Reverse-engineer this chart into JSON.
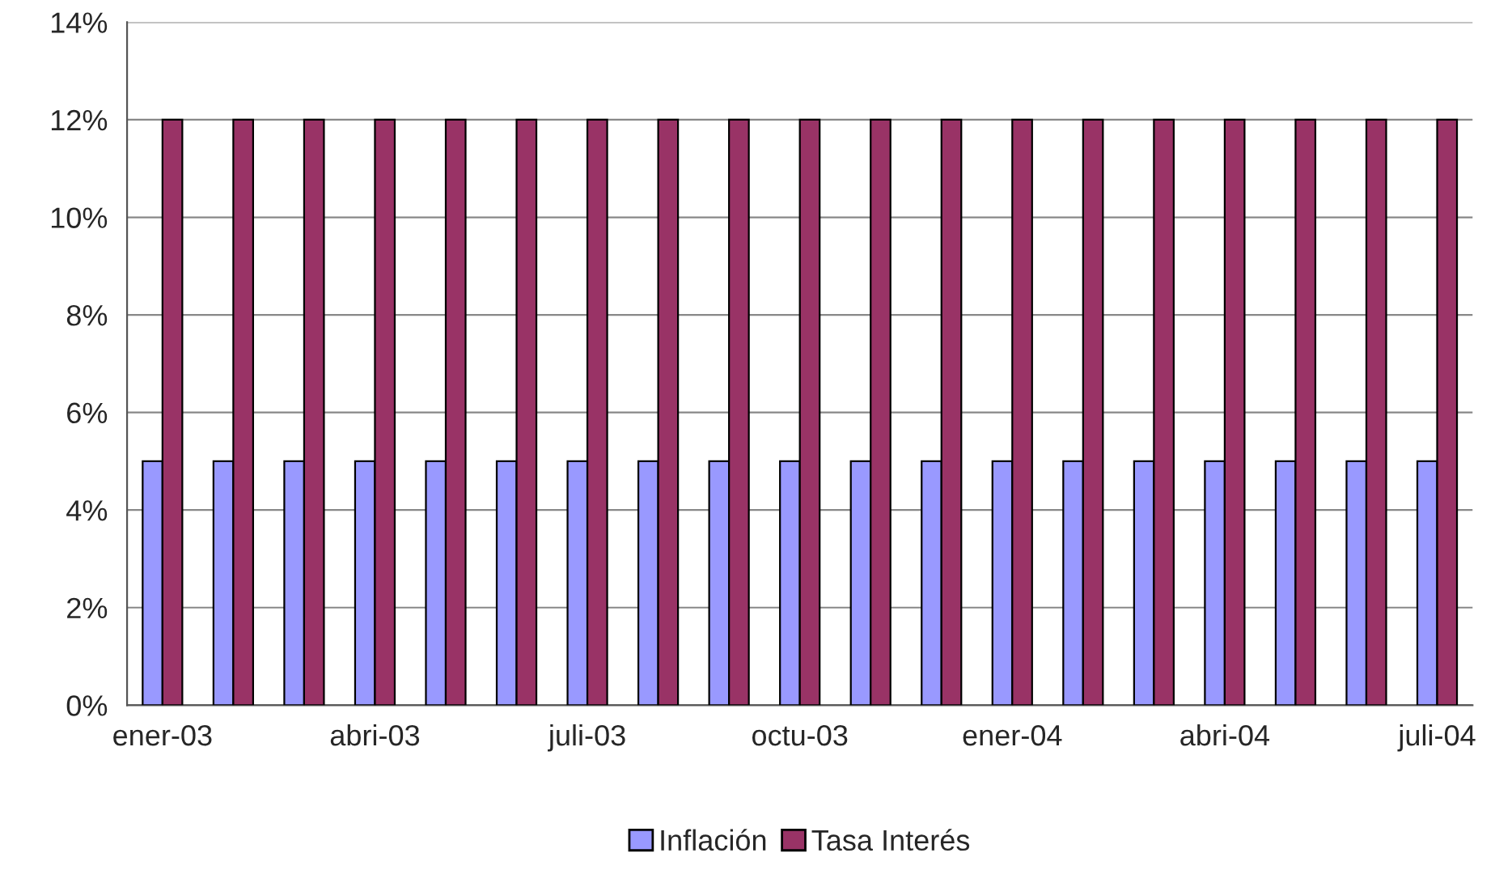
{
  "chart_data": {
    "type": "bar",
    "categories": [
      "ener-03",
      null,
      null,
      "abri-03",
      null,
      null,
      "juli-03",
      null,
      null,
      "octu-03",
      null,
      null,
      "ener-04",
      null,
      null,
      "abri-04",
      null,
      null,
      "juli-04"
    ],
    "series": [
      {
        "name": "Inflación",
        "color": "#9999ff",
        "values": [
          5,
          5,
          5,
          5,
          5,
          5,
          5,
          5,
          5,
          5,
          5,
          5,
          5,
          5,
          5,
          5,
          5,
          5,
          5
        ]
      },
      {
        "name": "Tasa Interés",
        "color": "#993366",
        "values": [
          12,
          12,
          12,
          12,
          12,
          12,
          12,
          12,
          12,
          12,
          12,
          12,
          12,
          12,
          12,
          12,
          12,
          12,
          12
        ]
      }
    ],
    "ylim": [
      0,
      14
    ],
    "yticks": [
      {
        "value": 0,
        "label": "0%"
      },
      {
        "value": 2,
        "label": "2%"
      },
      {
        "value": 4,
        "label": "4%"
      },
      {
        "value": 6,
        "label": "6%"
      },
      {
        "value": 8,
        "label": "8%"
      },
      {
        "value": 10,
        "label": "10%"
      },
      {
        "value": 12,
        "label": "12%"
      },
      {
        "value": 14,
        "label": "14%"
      }
    ],
    "grid": "y",
    "legend": "bottom"
  }
}
